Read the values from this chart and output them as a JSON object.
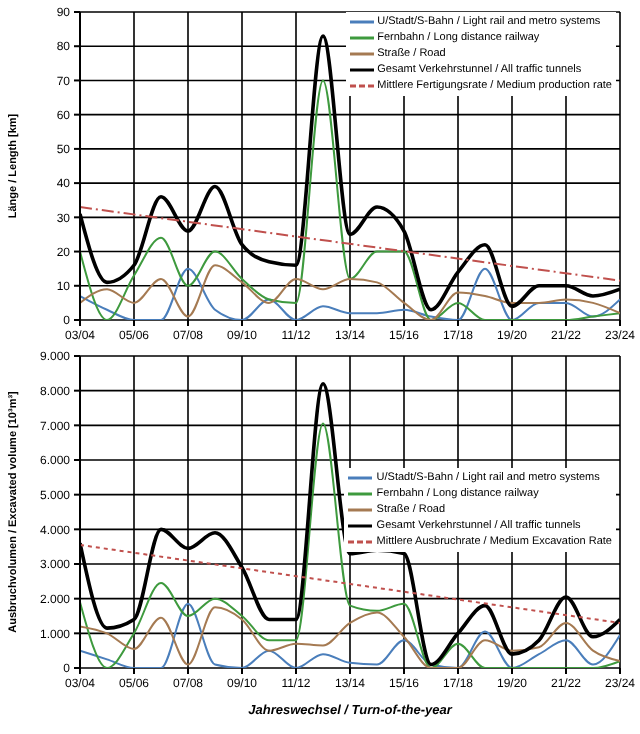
{
  "chart_data": [
    {
      "type": "line",
      "ylabel": "Länge / Length [km]",
      "categories": [
        "03/04",
        null,
        "05/06",
        null,
        "07/08",
        null,
        "09/10",
        null,
        "11/12",
        null,
        "13/14",
        null,
        "15/16",
        null,
        "17/18",
        null,
        "19/20",
        null,
        "21/22",
        null,
        "23/24"
      ],
      "series": [
        {
          "name": "U/Stadt/S-Bahn / Light rail and metro systems",
          "color": "#4a7ebb",
          "values": [
            7,
            3,
            0,
            0,
            15,
            3,
            0,
            6,
            0,
            4,
            2,
            2,
            3,
            1,
            0,
            15,
            0,
            5,
            5,
            1,
            6
          ]
        },
        {
          "name": "Fernbahn / Long distance railway",
          "color": "#3e9a3e",
          "values": [
            20,
            0,
            13,
            24,
            10,
            20,
            12,
            6,
            5,
            70,
            12,
            20,
            20,
            0,
            5,
            0,
            0,
            0,
            0,
            1,
            2
          ]
        },
        {
          "name": "Straße / Road",
          "color": "#a57a52",
          "values": [
            5,
            9,
            5,
            12,
            1,
            16,
            11,
            5,
            12,
            9,
            12,
            11,
            5,
            0,
            8,
            7,
            5,
            5,
            6,
            5,
            2
          ]
        },
        {
          "name": "Gesamt Verkehrstunnel / All traffic tunnels",
          "color": "#000000",
          "values": [
            31,
            11,
            16,
            36,
            26,
            39,
            22,
            17,
            16,
            83,
            25,
            33,
            26,
            3,
            14,
            22,
            4,
            10,
            10,
            7,
            9
          ]
        },
        {
          "name": "Mittlere Fertigungsrate / Medium production rate",
          "color": "#c0504d",
          "line_style": "dashed",
          "x": [
            "03/04",
            "23/24"
          ],
          "values": [
            33,
            11.5
          ]
        }
      ],
      "ylim": [
        0,
        90
      ],
      "yticks": [
        0,
        10,
        20,
        30,
        40,
        50,
        60,
        70,
        80,
        90
      ],
      "grid": true,
      "legend": "top right",
      "marker": "none"
    },
    {
      "type": "line",
      "xlabel": "Jahreswechsel / Turn-of-the-year",
      "ylabel": "Ausbruchvolumen / Excavated volume [10³m³]",
      "categories": [
        "03/04",
        null,
        "05/06",
        null,
        "07/08",
        null,
        "09/10",
        null,
        "11/12",
        null,
        "13/14",
        null,
        "15/16",
        null,
        "17/18",
        null,
        "19/20",
        null,
        "21/22",
        null,
        "23/24"
      ],
      "series": [
        {
          "name": "U/Stadt/S-Bahn / Light rail and metro systems",
          "color": "#4a7ebb",
          "values": [
            500,
            250,
            0,
            0,
            1850,
            100,
            0,
            500,
            0,
            400,
            150,
            100,
            800,
            100,
            0,
            1050,
            0,
            400,
            800,
            100,
            950
          ]
        },
        {
          "name": "Fernbahn / Long distance railway",
          "color": "#3e9a3e",
          "values": [
            1900,
            0,
            1000,
            2450,
            1500,
            2000,
            1500,
            800,
            800,
            7050,
            1800,
            1650,
            1850,
            0,
            700,
            0,
            0,
            0,
            0,
            0,
            200
          ]
        },
        {
          "name": "Straße / Road",
          "color": "#a57a52",
          "values": [
            1200,
            1000,
            550,
            1450,
            100,
            1750,
            1400,
            500,
            700,
            650,
            1300,
            1600,
            900,
            0,
            0,
            800,
            500,
            600,
            1300,
            500,
            200
          ]
        },
        {
          "name": "Gesamt Verkehrstunnel / All traffic tunnels",
          "color": "#000000",
          "values": [
            3600,
            1150,
            1400,
            4000,
            3450,
            3900,
            2900,
            1400,
            1400,
            8200,
            3300,
            3400,
            3300,
            100,
            1000,
            1800,
            400,
            800,
            2050,
            900,
            1400
          ]
        },
        {
          "name": "Mittlere Ausbruchrate / Medium Excavation Rate",
          "color": "#c0504d",
          "line_style": "dotted",
          "x": [
            "03/04",
            "23/24"
          ],
          "values": [
            3550,
            1300
          ]
        }
      ],
      "ylim": [
        0,
        9000
      ],
      "yticks": [
        {
          "value": 0,
          "label": "0"
        },
        {
          "value": 1000,
          "label": "1.000"
        },
        {
          "value": 2000,
          "label": "2.000"
        },
        {
          "value": 3000,
          "label": "3.000"
        },
        {
          "value": 4000,
          "label": "4.000"
        },
        {
          "value": 5000,
          "label": "5.000"
        },
        {
          "value": 6000,
          "label": "6.000"
        },
        {
          "value": 7000,
          "label": "7.000"
        },
        {
          "value": 8000,
          "label": "8.000"
        },
        {
          "value": 9000,
          "label": "9.000"
        }
      ],
      "grid": true,
      "legend": "right",
      "marker": "none"
    }
  ]
}
